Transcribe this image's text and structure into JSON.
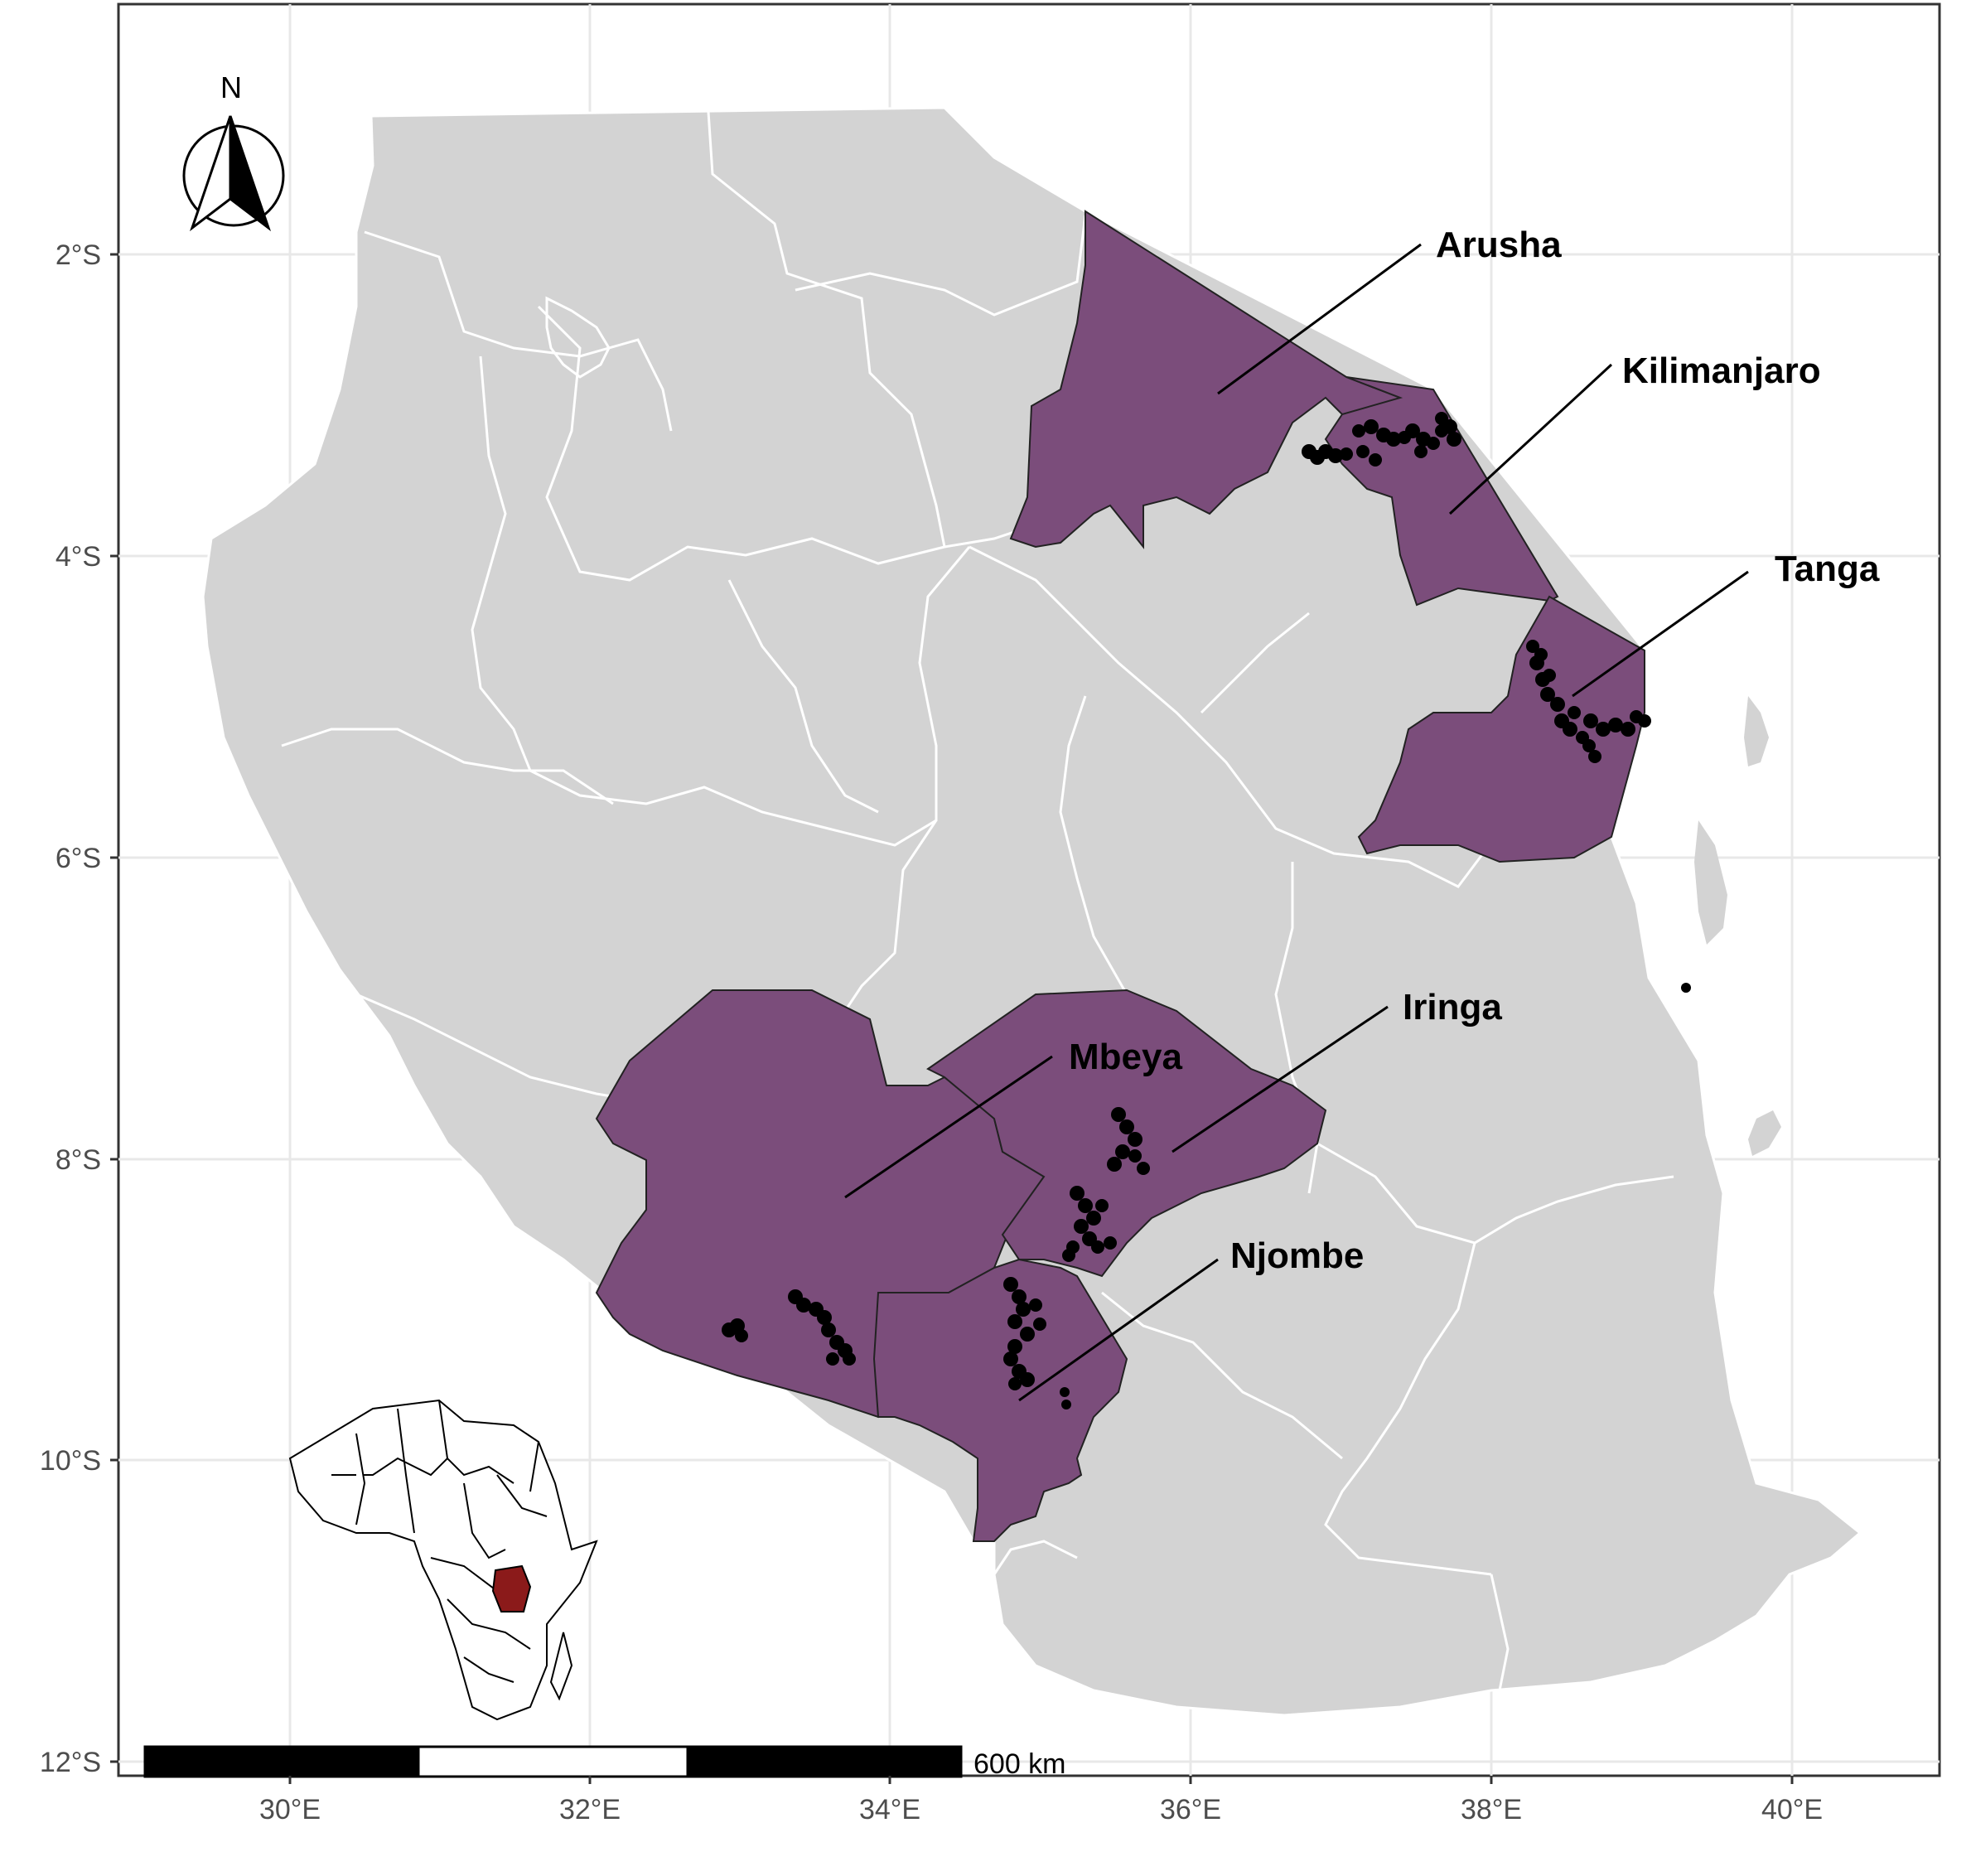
{
  "map": {
    "x_ticks": [
      "30°E",
      "32°E",
      "34°E",
      "36°E",
      "38°E",
      "40°E"
    ],
    "y_ticks": [
      "2°S",
      "4°S",
      "6°S",
      "8°S",
      "10°S",
      "12°S"
    ],
    "north_label": "N",
    "scale_label": "600 km",
    "regions": [
      {
        "name": "Arusha",
        "highlighted": true
      },
      {
        "name": "Kilimanjaro",
        "highlighted": true
      },
      {
        "name": "Tanga",
        "highlighted": true
      },
      {
        "name": "Mbeya",
        "highlighted": true
      },
      {
        "name": "Iringa",
        "highlighted": true
      },
      {
        "name": "Njombe",
        "highlighted": true
      }
    ],
    "colors": {
      "highlight": "#7b4d7b",
      "land": "#d3d3d3",
      "panel_bg": "#ffffff",
      "grid": "#e6e6e6",
      "inset_tanzania": "#8b1a1a",
      "points": "#000000"
    },
    "inset": {
      "description_region": "Africa",
      "highlight": "Tanzania"
    }
  }
}
